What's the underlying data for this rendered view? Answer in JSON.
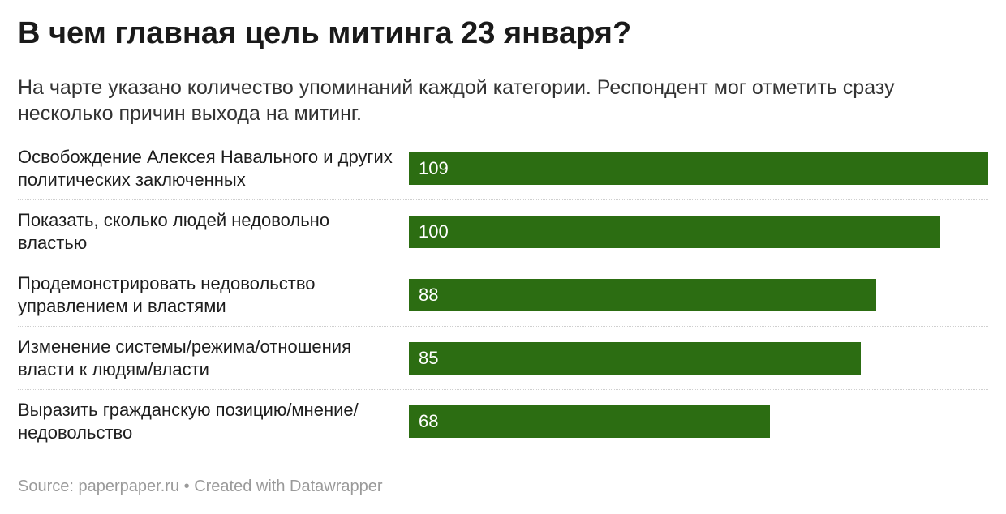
{
  "header": {
    "title": "В чем главная цель митинга 23 января?",
    "subtitle": "На чарте указано количество упоминаний каждой категории. Респондент мог отметить сразу несколько причин выхода на митинг."
  },
  "footer": {
    "source_label": "Source:",
    "source_value": "paperpaper.ru",
    "separator": "•",
    "credit": "Created with Datawrapper"
  },
  "colors": {
    "bar": "#2c6d12",
    "value_text": "#ffffff",
    "footer_text": "#9a9a9a"
  },
  "chart_data": {
    "type": "bar",
    "orientation": "horizontal",
    "title": "В чем главная цель митинга 23 января?",
    "subtitle": "На чарте указано количество упоминаний каждой категории. Респондент мог отметить сразу несколько причин выхода на митинг.",
    "xlabel": "",
    "ylabel": "",
    "xlim": [
      0,
      109
    ],
    "grid": false,
    "categories": [
      "Освобождение Алексея Навального и других политических заключенных",
      "Показать, сколько людей недовольно властью",
      "Продемонстрировать недовольство управлением и властями",
      "Изменение системы/режима/отношения власти к людям/власти",
      "Выразить гражданскую позицию/мнение/ недовольство"
    ],
    "values": [
      109,
      100,
      88,
      85,
      68
    ]
  }
}
